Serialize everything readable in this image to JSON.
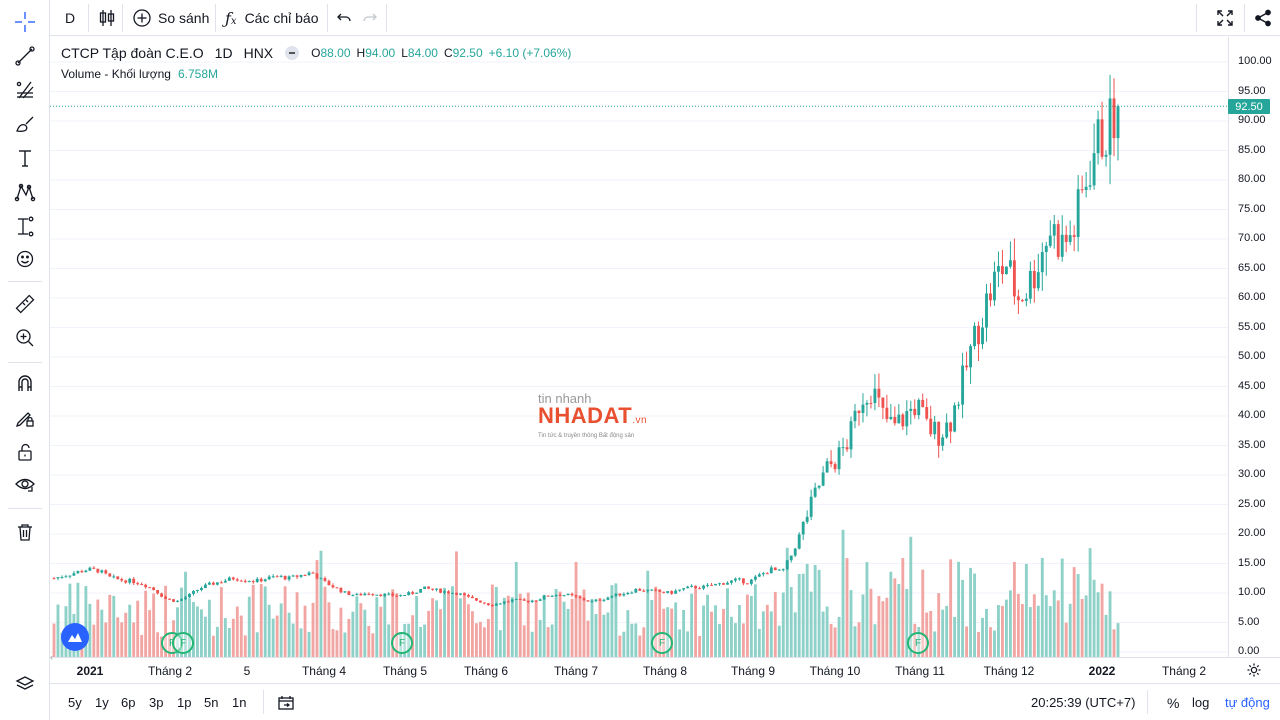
{
  "toolbar": {
    "interval": "D",
    "compare_label": "So sánh",
    "indicators_label": "Các chỉ báo"
  },
  "legend": {
    "symbol_name": "CTCP Tập đoàn C.E.O",
    "timeframe": "1D",
    "exchange": "HNX",
    "open_key": "O",
    "open": "88.00",
    "high_key": "H",
    "high": "94.00",
    "low_key": "L",
    "low": "84.00",
    "close_key": "C",
    "close": "92.50",
    "change": "+6.10 (+7.06%)",
    "volume_label": "Volume - Khối lượng",
    "volume_value": "6.758M"
  },
  "price_axis": {
    "labels": [
      "100.00",
      "95.00",
      "90.00",
      "85.00",
      "80.00",
      "75.00",
      "70.00",
      "65.00",
      "60.00",
      "55.00",
      "50.00",
      "45.00",
      "40.00",
      "35.00",
      "30.00",
      "25.00",
      "20.00",
      "15.00",
      "10.00",
      "5.00",
      "0.00"
    ],
    "last_price": "92.50"
  },
  "time_axis": {
    "labels": [
      "2021",
      "Tháng 2",
      "5",
      "Tháng 4",
      "Tháng 5",
      "Tháng 6",
      "Tháng 7",
      "Tháng 8",
      "Tháng 9",
      "Tháng 10",
      "Tháng 11",
      "Tháng 12",
      "2022",
      "Tháng 2"
    ]
  },
  "bottom": {
    "ranges": [
      "5y",
      "1y",
      "6p",
      "3p",
      "1p",
      "5n",
      "1n"
    ],
    "clock": "20:25:39 (UTC+7)",
    "percent_label": "%",
    "log_label": "log",
    "auto_label": "tự động"
  },
  "events": {
    "label": "F"
  },
  "watermark": {
    "line1": "tin nhanh",
    "line2": "NHADAT",
    "line2_suffix": ".vn",
    "tagline": "Tin tức & truyền thông Bất động sản"
  },
  "colors": {
    "up": "#26a69a",
    "down": "#ef5350",
    "volume_up": "#8ed1c8",
    "volume_down": "#f2a6a3",
    "accent": "#2962ff",
    "event": "#22b573",
    "watermark_red": "#e8502f"
  },
  "chart_data": {
    "type": "candlestick",
    "x_range": [
      "2021-01",
      "2022-02"
    ],
    "ylim": [
      0,
      100
    ],
    "last_price": 92.5,
    "price_path": [
      [
        0,
        12.5
      ],
      [
        6,
        13.0
      ],
      [
        12,
        13.5
      ],
      [
        18,
        14.0
      ],
      [
        24,
        13.8
      ],
      [
        30,
        12.6
      ],
      [
        36,
        12.2
      ],
      [
        42,
        12.0
      ],
      [
        48,
        11.5
      ],
      [
        54,
        10.5
      ],
      [
        60,
        9.0
      ],
      [
        66,
        8.6
      ],
      [
        72,
        9.5
      ],
      [
        78,
        10.8
      ],
      [
        84,
        11.5
      ],
      [
        90,
        12.0
      ],
      [
        96,
        12.5
      ],
      [
        102,
        12.3
      ],
      [
        108,
        12.0
      ],
      [
        114,
        12.5
      ],
      [
        120,
        12.8
      ],
      [
        126,
        12.5
      ],
      [
        132,
        13.0
      ],
      [
        138,
        13.5
      ],
      [
        144,
        12.0
      ],
      [
        150,
        11.0
      ],
      [
        156,
        10.0
      ],
      [
        162,
        9.6
      ],
      [
        168,
        10.0
      ],
      [
        174,
        9.8
      ],
      [
        180,
        9.6
      ],
      [
        186,
        9.6
      ],
      [
        192,
        10.0
      ],
      [
        198,
        10.8
      ],
      [
        204,
        10.5
      ],
      [
        210,
        10.2
      ],
      [
        216,
        10.0
      ],
      [
        222,
        9.2
      ],
      [
        228,
        8.6
      ],
      [
        234,
        8.0
      ],
      [
        240,
        8.4
      ],
      [
        246,
        8.8
      ],
      [
        252,
        8.6
      ],
      [
        258,
        8.8
      ],
      [
        264,
        9.5
      ],
      [
        270,
        9.8
      ],
      [
        276,
        9.6
      ],
      [
        282,
        9.0
      ],
      [
        288,
        8.5
      ],
      [
        294,
        9.0
      ],
      [
        300,
        9.6
      ],
      [
        306,
        10.0
      ],
      [
        312,
        10.6
      ],
      [
        318,
        10.4
      ],
      [
        324,
        10.2
      ],
      [
        330,
        10.0
      ],
      [
        336,
        10.6
      ],
      [
        342,
        11.0
      ],
      [
        348,
        11.0
      ],
      [
        354,
        11.4
      ],
      [
        360,
        11.8
      ],
      [
        366,
        12.2
      ],
      [
        372,
        11.8
      ],
      [
        378,
        13.0
      ],
      [
        384,
        14.0
      ],
      [
        390,
        13.5
      ],
      [
        396,
        17.0
      ],
      [
        402,
        22.0
      ],
      [
        408,
        27.0
      ],
      [
        414,
        31.0
      ],
      [
        420,
        33.0
      ],
      [
        426,
        36.0
      ],
      [
        432,
        43.0
      ],
      [
        438,
        45.0
      ],
      [
        444,
        40.0
      ],
      [
        450,
        38.0
      ],
      [
        456,
        40.0
      ],
      [
        462,
        42.0
      ],
      [
        468,
        38.0
      ],
      [
        474,
        37.0
      ],
      [
        480,
        39.0
      ],
      [
        486,
        45.0
      ],
      [
        492,
        52.0
      ],
      [
        498,
        58.0
      ],
      [
        504,
        63.0
      ],
      [
        510,
        66.0
      ],
      [
        516,
        60.0
      ],
      [
        522,
        62.0
      ],
      [
        528,
        67.0
      ],
      [
        534,
        72.0
      ],
      [
        540,
        69.0
      ],
      [
        546,
        71.0
      ],
      [
        552,
        79.0
      ],
      [
        558,
        86.0
      ],
      [
        564,
        88.0
      ],
      [
        570,
        92.5
      ]
    ],
    "volume_max_label": 20,
    "events": [
      {
        "date": "2021-02",
        "label": "F"
      },
      {
        "date": "2021-02",
        "label": "F"
      },
      {
        "date": "2021-05",
        "label": "F"
      },
      {
        "date": "2021-08",
        "label": "F"
      },
      {
        "date": "2021-11",
        "label": "F"
      }
    ]
  }
}
